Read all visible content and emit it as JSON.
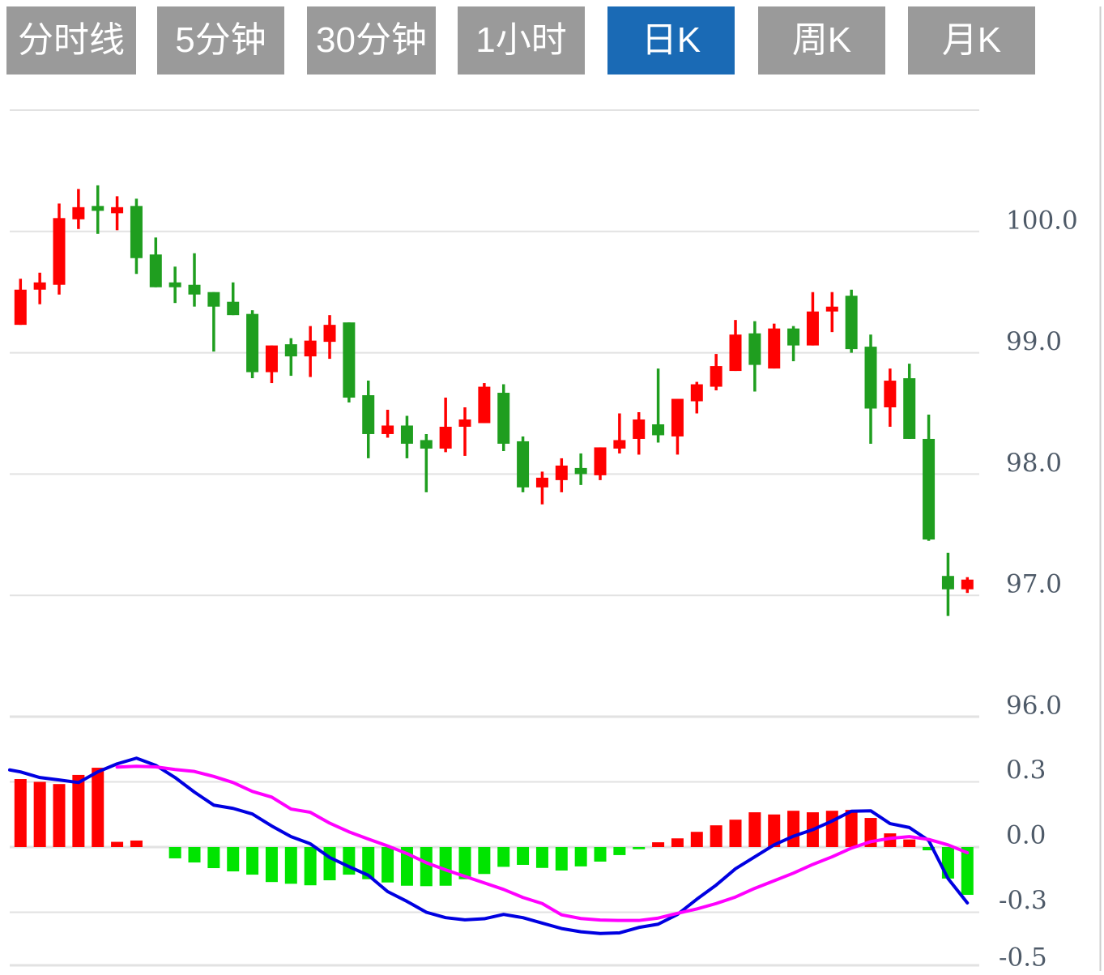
{
  "toolbar": {
    "buttons": [
      {
        "label": "分时线",
        "active": false
      },
      {
        "label": "5分钟",
        "active": false
      },
      {
        "label": "30分钟",
        "active": false
      },
      {
        "label": "1小时",
        "active": false
      },
      {
        "label": "日K",
        "active": true
      },
      {
        "label": "周K",
        "active": false
      },
      {
        "label": "月K",
        "active": false
      }
    ],
    "active_bg": "#1a6ab5",
    "inactive_bg": "#9a9a9a",
    "text_color": "#ffffff"
  },
  "chart_data": {
    "type": "candlestick+macd",
    "title": "",
    "price_axis": {
      "tick_labels": [
        "100.0",
        "99.0",
        "98.0",
        "97.0",
        "96.0"
      ],
      "tick_values": [
        100.0,
        99.0,
        98.0,
        97.0,
        96.0
      ],
      "gridline_values": [
        101.0,
        100.0,
        99.0,
        98.0,
        97.0,
        96.0
      ],
      "ylim": [
        95.95,
        101.0
      ],
      "grid": "on",
      "label_side": "right"
    },
    "macd_axis": {
      "tick_labels": [
        "0.3",
        "0.0",
        "-0.3",
        "-0.5"
      ],
      "tick_values": [
        0.3,
        0.0,
        -0.3,
        -0.5
      ],
      "gridline_values": [
        0.3,
        0.0,
        -0.3
      ],
      "ylim": [
        -0.55,
        0.42
      ],
      "grid": "on",
      "label_side": "right"
    },
    "candles_ohlc": [
      {
        "o": 99.23,
        "h": 99.61,
        "l": 99.23,
        "c": 99.52
      },
      {
        "o": 99.52,
        "h": 99.66,
        "l": 99.4,
        "c": 99.58
      },
      {
        "o": 99.56,
        "h": 100.23,
        "l": 99.48,
        "c": 100.11
      },
      {
        "o": 100.1,
        "h": 100.35,
        "l": 100.02,
        "c": 100.2
      },
      {
        "o": 100.21,
        "h": 100.38,
        "l": 99.98,
        "c": 100.17
      },
      {
        "o": 100.15,
        "h": 100.29,
        "l": 100.01,
        "c": 100.2
      },
      {
        "o": 100.21,
        "h": 100.27,
        "l": 99.65,
        "c": 99.78
      },
      {
        "o": 99.81,
        "h": 99.95,
        "l": 99.54,
        "c": 99.54
      },
      {
        "o": 99.58,
        "h": 99.71,
        "l": 99.41,
        "c": 99.54
      },
      {
        "o": 99.56,
        "h": 99.82,
        "l": 99.38,
        "c": 99.48
      },
      {
        "o": 99.5,
        "h": 99.5,
        "l": 99.01,
        "c": 99.38
      },
      {
        "o": 99.42,
        "h": 99.58,
        "l": 99.31,
        "c": 99.31
      },
      {
        "o": 99.32,
        "h": 99.35,
        "l": 98.79,
        "c": 98.84
      },
      {
        "o": 98.84,
        "h": 99.06,
        "l": 98.75,
        "c": 99.06
      },
      {
        "o": 99.07,
        "h": 99.12,
        "l": 98.81,
        "c": 98.97
      },
      {
        "o": 98.97,
        "h": 99.22,
        "l": 98.8,
        "c": 99.1
      },
      {
        "o": 99.09,
        "h": 99.31,
        "l": 98.95,
        "c": 99.23
      },
      {
        "o": 99.25,
        "h": 99.25,
        "l": 98.59,
        "c": 98.63
      },
      {
        "o": 98.65,
        "h": 98.77,
        "l": 98.13,
        "c": 98.33
      },
      {
        "o": 98.33,
        "h": 98.53,
        "l": 98.3,
        "c": 98.4
      },
      {
        "o": 98.4,
        "h": 98.48,
        "l": 98.13,
        "c": 98.25
      },
      {
        "o": 98.28,
        "h": 98.33,
        "l": 97.85,
        "c": 98.21
      },
      {
        "o": 98.21,
        "h": 98.63,
        "l": 98.18,
        "c": 98.39
      },
      {
        "o": 98.39,
        "h": 98.55,
        "l": 98.15,
        "c": 98.45
      },
      {
        "o": 98.42,
        "h": 98.75,
        "l": 98.42,
        "c": 98.72
      },
      {
        "o": 98.67,
        "h": 98.74,
        "l": 98.19,
        "c": 98.25
      },
      {
        "o": 98.27,
        "h": 98.31,
        "l": 97.85,
        "c": 97.89
      },
      {
        "o": 97.89,
        "h": 98.02,
        "l": 97.75,
        "c": 97.97
      },
      {
        "o": 97.95,
        "h": 98.13,
        "l": 97.85,
        "c": 98.07
      },
      {
        "o": 98.05,
        "h": 98.17,
        "l": 97.91,
        "c": 98.0
      },
      {
        "o": 97.99,
        "h": 98.22,
        "l": 97.95,
        "c": 98.22
      },
      {
        "o": 98.21,
        "h": 98.5,
        "l": 98.17,
        "c": 98.28
      },
      {
        "o": 98.29,
        "h": 98.51,
        "l": 98.16,
        "c": 98.45
      },
      {
        "o": 98.41,
        "h": 98.87,
        "l": 98.26,
        "c": 98.32
      },
      {
        "o": 98.31,
        "h": 98.62,
        "l": 98.16,
        "c": 98.62
      },
      {
        "o": 98.6,
        "h": 98.76,
        "l": 98.5,
        "c": 98.74
      },
      {
        "o": 98.72,
        "h": 98.99,
        "l": 98.69,
        "c": 98.89
      },
      {
        "o": 98.85,
        "h": 99.27,
        "l": 98.85,
        "c": 99.15
      },
      {
        "o": 99.16,
        "h": 99.26,
        "l": 98.68,
        "c": 98.9
      },
      {
        "o": 98.87,
        "h": 99.24,
        "l": 98.87,
        "c": 99.2
      },
      {
        "o": 99.2,
        "h": 99.22,
        "l": 98.93,
        "c": 99.06
      },
      {
        "o": 99.06,
        "h": 99.5,
        "l": 99.06,
        "c": 99.34
      },
      {
        "o": 99.34,
        "h": 99.5,
        "l": 99.17,
        "c": 99.38
      },
      {
        "o": 99.47,
        "h": 99.52,
        "l": 99.0,
        "c": 99.03
      },
      {
        "o": 99.05,
        "h": 99.15,
        "l": 98.25,
        "c": 98.54
      },
      {
        "o": 98.55,
        "h": 98.87,
        "l": 98.39,
        "c": 98.77
      },
      {
        "o": 98.79,
        "h": 98.91,
        "l": 98.29,
        "c": 98.29
      },
      {
        "o": 98.29,
        "h": 98.49,
        "l": 97.45,
        "c": 97.46
      },
      {
        "o": 97.16,
        "h": 97.35,
        "l": 96.83,
        "c": 97.05
      },
      {
        "o": 97.05,
        "h": 97.15,
        "l": 97.02,
        "c": 97.13
      }
    ],
    "macd": {
      "hist": [
        0.313,
        0.3,
        0.29,
        0.332,
        0.365,
        0.024,
        0.03,
        0.0,
        -0.052,
        -0.071,
        -0.097,
        -0.112,
        -0.127,
        -0.161,
        -0.169,
        -0.176,
        -0.153,
        -0.127,
        -0.148,
        -0.163,
        -0.178,
        -0.18,
        -0.178,
        -0.148,
        -0.124,
        -0.091,
        -0.082,
        -0.096,
        -0.108,
        -0.089,
        -0.067,
        -0.037,
        -0.01,
        0.022,
        0.04,
        0.07,
        0.1,
        0.126,
        0.16,
        0.15,
        0.167,
        0.16,
        0.167,
        0.171,
        0.134,
        0.063,
        0.035,
        -0.015,
        -0.145,
        -0.22
      ],
      "dif": [
        0.346,
        0.32,
        0.309,
        0.297,
        0.346,
        0.383,
        0.409,
        0.376,
        0.32,
        0.253,
        0.193,
        0.178,
        0.152,
        0.097,
        0.048,
        0.015,
        -0.048,
        -0.09,
        -0.13,
        -0.205,
        -0.25,
        -0.3,
        -0.325,
        -0.335,
        -0.33,
        -0.31,
        -0.325,
        -0.35,
        -0.375,
        -0.39,
        -0.398,
        -0.395,
        -0.37,
        -0.355,
        -0.31,
        -0.24,
        -0.175,
        -0.1,
        -0.045,
        0.01,
        0.05,
        0.08,
        0.12,
        0.165,
        0.167,
        0.108,
        0.09,
        0.03,
        -0.145,
        -0.257
      ],
      "dea": [
        null,
        null,
        null,
        null,
        null,
        0.368,
        0.372,
        0.369,
        0.357,
        0.348,
        0.325,
        0.297,
        0.256,
        0.23,
        0.175,
        0.16,
        0.11,
        0.07,
        0.037,
        0.005,
        -0.03,
        -0.072,
        -0.105,
        -0.135,
        -0.165,
        -0.195,
        -0.232,
        -0.26,
        -0.312,
        -0.329,
        -0.336,
        -0.338,
        -0.338,
        -0.327,
        -0.305,
        -0.285,
        -0.26,
        -0.23,
        -0.19,
        -0.155,
        -0.12,
        -0.08,
        -0.045,
        -0.005,
        0.025,
        0.04,
        0.048,
        0.035,
        0.01,
        -0.026
      ]
    },
    "colors": {
      "candle_up": "#ff0000",
      "candle_down": "#1f9e1f",
      "hist_positive": "#ff0000",
      "hist_negative": "#00e400",
      "dif_line": "#0000e1",
      "dea_line": "#ff00ff",
      "gridline": "#e2e2e2",
      "axis_text": "#4e5a68",
      "right_border": "#cccccc"
    },
    "legend": "none"
  }
}
